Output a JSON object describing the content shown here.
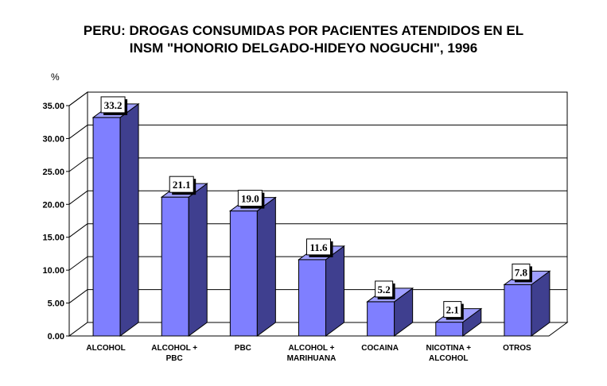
{
  "chart_data": {
    "type": "bar",
    "title_line1": "PERU: DROGAS CONSUMIDAS POR PACIENTES ATENDIDOS EN EL",
    "title_line2": "INSM \"HONORIO DELGADO-HIDEYO NOGUCHI\", 1996",
    "ylabel": "%",
    "xlabel": "",
    "ylim": [
      0,
      35
    ],
    "yticks": [
      "0.00",
      "5.00",
      "10.00",
      "15.00",
      "20.00",
      "25.00",
      "30.00",
      "35.00"
    ],
    "categories": [
      [
        "ALCOHOL"
      ],
      [
        "ALCOHOL +",
        "PBC"
      ],
      [
        "PBC"
      ],
      [
        "ALCOHOL +",
        "MARIHUANA"
      ],
      [
        "COCAINA"
      ],
      [
        "NICOTINA +",
        "ALCOHOL"
      ],
      [
        "OTROS"
      ]
    ],
    "values": [
      33.2,
      21.1,
      19.0,
      11.6,
      5.2,
      2.1,
      7.8
    ],
    "value_labels": [
      "33.2",
      "21.1",
      "19.0",
      "11.6",
      "5.2",
      "2.1",
      "7.8"
    ],
    "grid": true,
    "colors": {
      "bar_front": "#7f7fff",
      "bar_side": "#3f3f8f",
      "bar_top": "#9f9fff",
      "edge": "#000000"
    }
  }
}
